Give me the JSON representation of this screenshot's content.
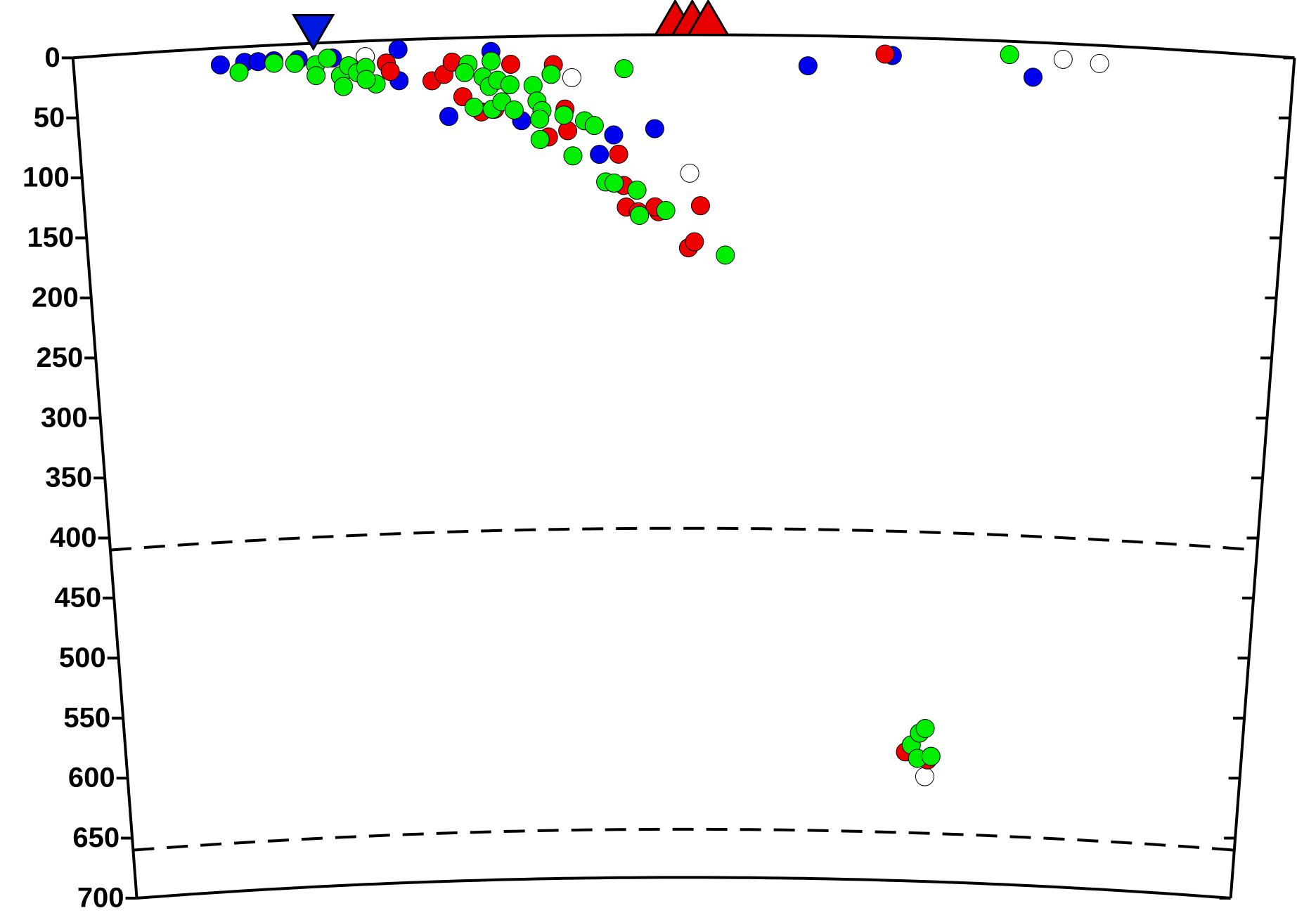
{
  "chart_data": {
    "type": "scatter",
    "xlim": [
      0,
      100
    ],
    "ylim": [
      0,
      700
    ],
    "y_reversed": true,
    "yticks": [
      0,
      50,
      100,
      150,
      200,
      250,
      300,
      350,
      400,
      450,
      500,
      550,
      600,
      650,
      700
    ],
    "dashed_depths": [
      410,
      660
    ],
    "series": [
      {
        "color": "#0000ee",
        "x": [
          12.0,
          14.0,
          15.1,
          16.4,
          18.4,
          21.2,
          23.9,
          26.6,
          26.6,
          34.2,
          30.6,
          36.6,
          44.2,
          43.0,
          47.6,
          60.2,
          67.1,
          78.7
        ],
        "values": [
          14,
          13,
          13,
          13,
          13,
          13,
          13,
          8,
          34,
          12,
          65,
          70,
          83,
          99,
          78,
          25,
          15,
          29
        ]
      },
      {
        "color": "#ffffff",
        "x": [
          23.9,
          40.8,
          50.5,
          81.1,
          84.1,
          71.7
        ],
        "values": [
          13,
          35,
          115,
          13,
          15,
          613
        ]
      },
      {
        "color": "#ee0000",
        "x": [
          25.6,
          25.9,
          29.3,
          30.3,
          31.0,
          31.8,
          33.3,
          34.4,
          35.8,
          39.3,
          40.2,
          40.4,
          38.8,
          44.6,
          45.0,
          45.2,
          46.2,
          47.9,
          47.6,
          51.4,
          50.4,
          50.9,
          66.5,
          69.9,
          71.9
        ],
        "values": [
          19,
          26,
          35,
          30,
          20,
          49,
          62,
          60,
          23,
          24,
          61,
          79,
          84,
          99,
          125,
          143,
          147,
          147,
          143,
          142,
          177,
          172,
          14,
          593,
          599
        ]
      },
      {
        "color": "#00ee00",
        "x": [
          13.5,
          16.4,
          18.1,
          19.8,
          20.8,
          19.8,
          21.8,
          22.0,
          22.5,
          23.2,
          23.9,
          24.7,
          23.9,
          32.3,
          32.0,
          34.2,
          33.5,
          34.0,
          34.7,
          35.7,
          32.7,
          34.2,
          35.0,
          36.0,
          37.6,
          37.9,
          38.3,
          38.1,
          38.1,
          39.1,
          40.1,
          40.8,
          41.8,
          42.6,
          43.5,
          44.2,
          46.1,
          46.3,
          48.5,
          53.5,
          45.1,
          76.7,
          70.4,
          71.1,
          71.6,
          71.0,
          72.2
        ],
        "values": [
          21,
          15,
          16,
          18,
          13,
          27,
          28,
          37,
          20,
          26,
          22,
          36,
          32,
          22,
          29,
          20,
          33,
          41,
          36,
          40,
          58,
          60,
          54,
          61,
          41,
          54,
          62,
          69,
          86,
          32,
          66,
          100,
          71,
          75,
          122,
          123,
          129,
          150,
          146,
          183,
          28,
          11,
          587,
          577,
          573,
          598,
          596
        ]
      }
    ],
    "triangles": [
      {
        "color": "#0018e0",
        "direction": "down",
        "x": [
          19.7
        ]
      },
      {
        "color": "#e60000",
        "direction": "up",
        "x": [
          49.3,
          50.7,
          52.0
        ]
      }
    ]
  }
}
